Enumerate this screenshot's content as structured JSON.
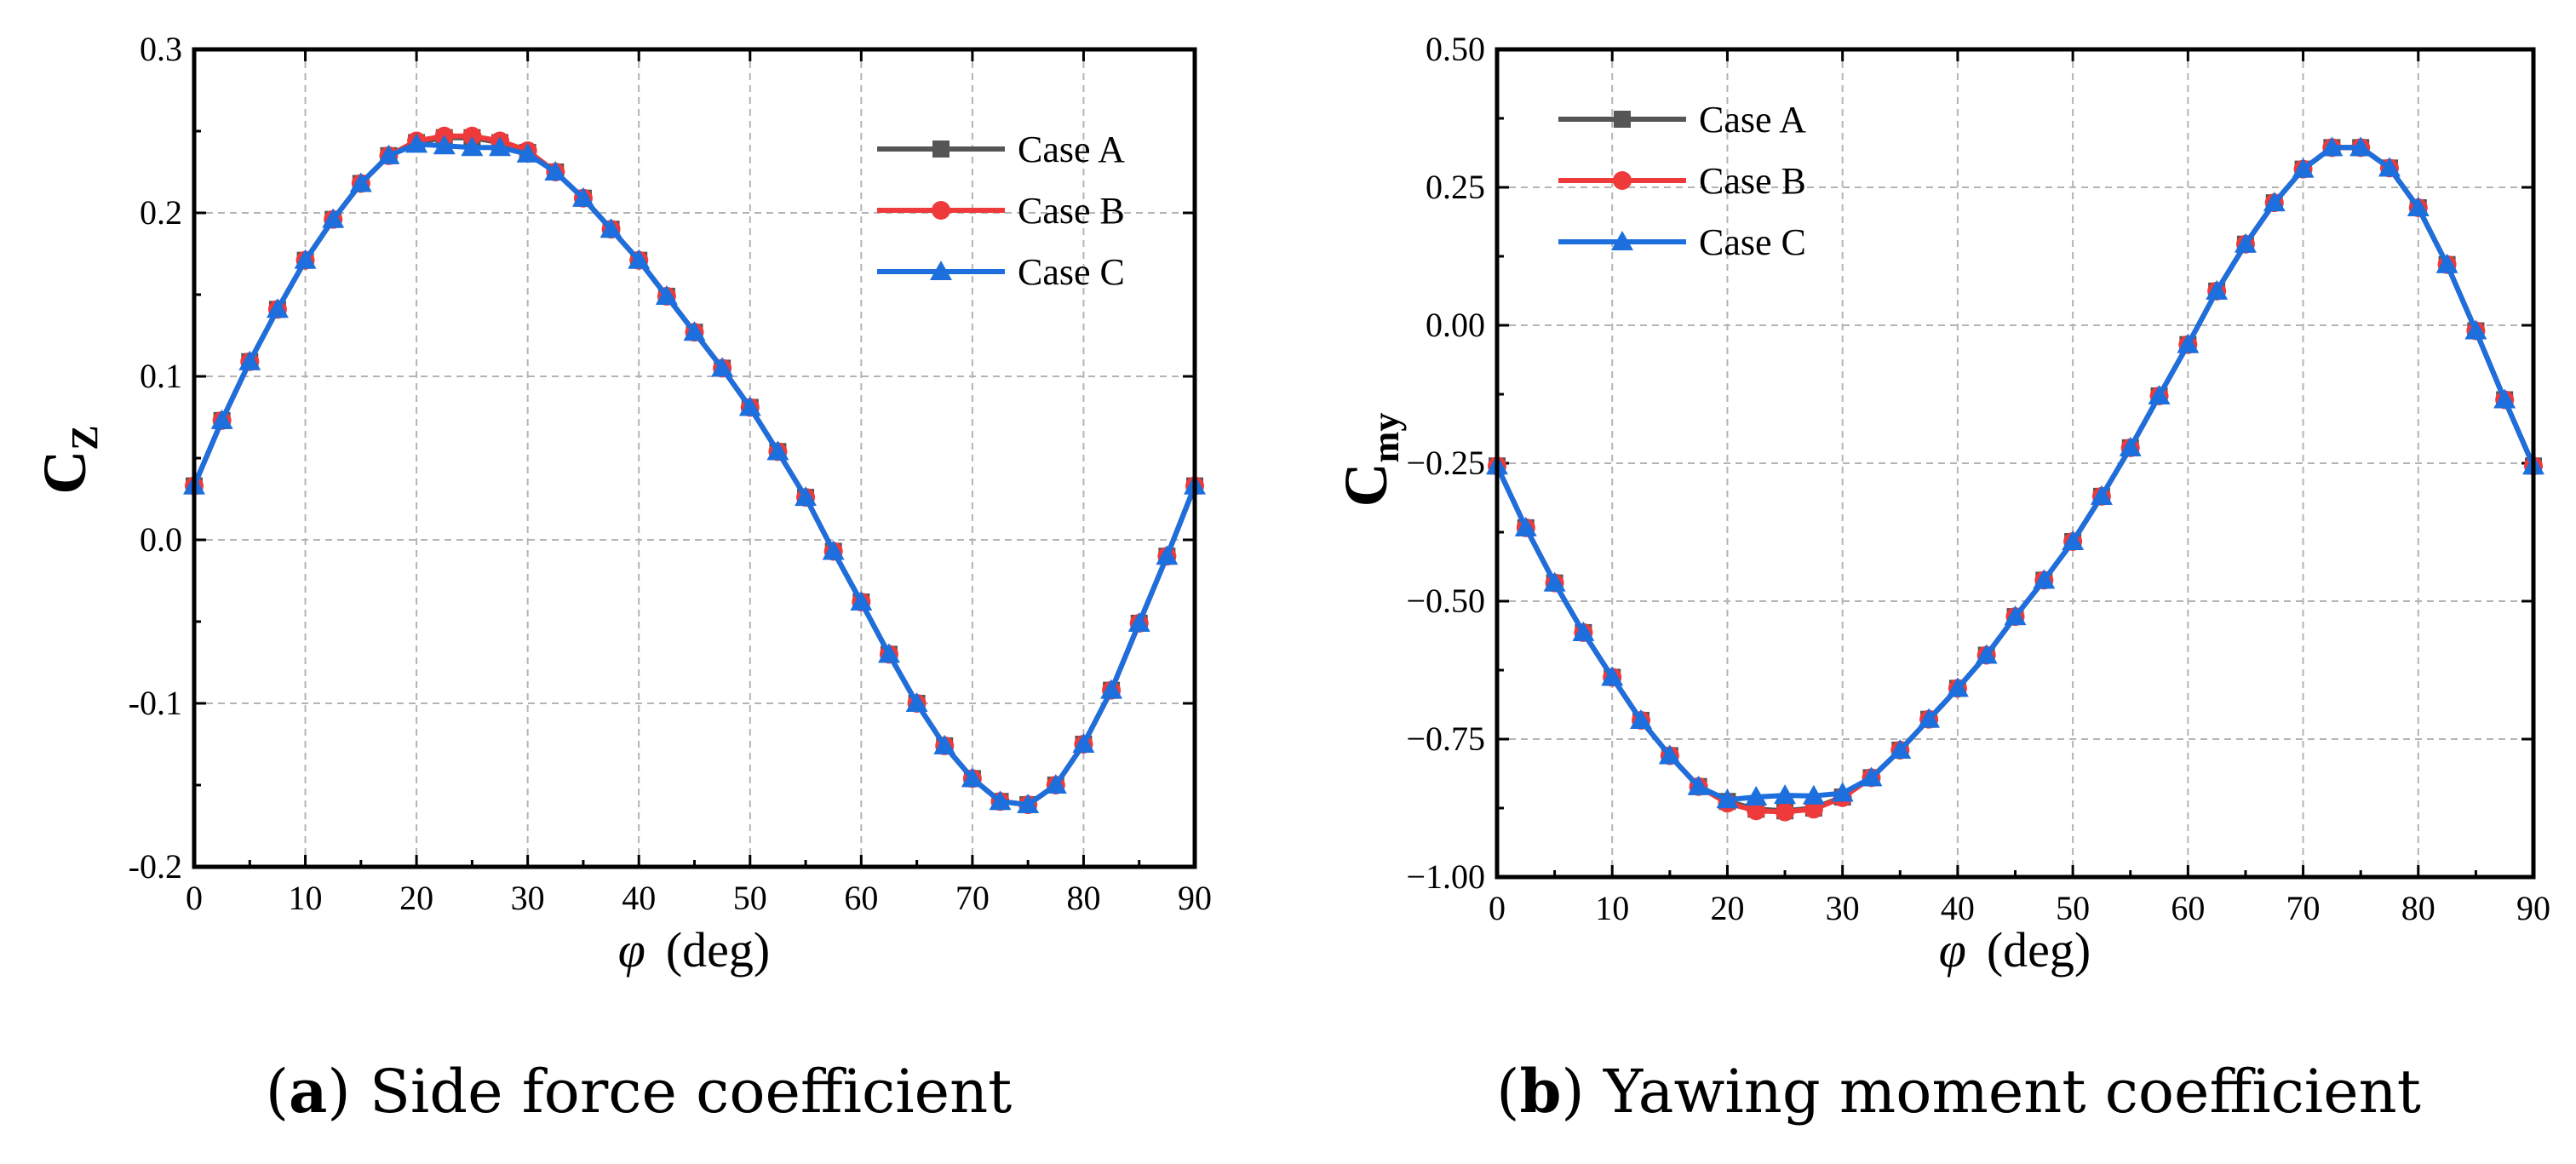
{
  "colors": {
    "case_a": "#555555",
    "case_b": "#ee3a3a",
    "case_c": "#1c6fdc",
    "grid": "#b4b4b4",
    "frame": "#000000"
  },
  "captions": {
    "a": {
      "tag": "a",
      "text": "Side force coefficient"
    },
    "b": {
      "tag": "b",
      "text": "Yawing moment coefficient"
    }
  },
  "chart_data": [
    {
      "type": "line",
      "title": "Side force coefficient",
      "ylabel_main": "C",
      "ylabel_sub": "Z",
      "xlabel_symbol": "φ",
      "xlabel_unit": "(deg)",
      "xlim": [
        0,
        90
      ],
      "ylim": [
        -0.2,
        0.3
      ],
      "grid": true,
      "legend_position": "top-right",
      "xticks": [
        0,
        10,
        20,
        30,
        40,
        50,
        60,
        70,
        80,
        90
      ],
      "xtick_labels": [
        "0",
        "10",
        "20",
        "30",
        "40",
        "50",
        "60",
        "70",
        "80",
        "90"
      ],
      "yticks": [
        -0.2,
        -0.1,
        0.0,
        0.1,
        0.2,
        0.3
      ],
      "ytick_labels": [
        "-0.2",
        "-0.1",
        "0.0",
        "0.1",
        "0.2",
        "0.3"
      ],
      "x": [
        0,
        2.5,
        5,
        7.5,
        10,
        12.5,
        15,
        17.5,
        20,
        22.5,
        25,
        27.5,
        30,
        32.5,
        35,
        37.5,
        40,
        42.5,
        45,
        47.5,
        50,
        52.5,
        55,
        57.5,
        60,
        62.5,
        65,
        67.5,
        70,
        72.5,
        75,
        77.5,
        80,
        82.5,
        85,
        87.5,
        90
      ],
      "series": [
        {
          "name": "Case A",
          "marker": "square",
          "values": [
            0.033,
            0.073,
            0.109,
            0.141,
            0.171,
            0.196,
            0.218,
            0.235,
            0.243,
            0.246,
            0.246,
            0.243,
            0.237,
            0.225,
            0.209,
            0.19,
            0.171,
            0.149,
            0.127,
            0.105,
            0.081,
            0.054,
            0.026,
            -0.007,
            -0.038,
            -0.07,
            -0.1,
            -0.126,
            -0.146,
            -0.16,
            -0.162,
            -0.15,
            -0.125,
            -0.092,
            -0.051,
            -0.01,
            0.033
          ]
        },
        {
          "name": "Case B",
          "marker": "circle",
          "values": [
            0.033,
            0.073,
            0.109,
            0.141,
            0.171,
            0.196,
            0.218,
            0.235,
            0.244,
            0.247,
            0.247,
            0.244,
            0.238,
            0.225,
            0.209,
            0.19,
            0.171,
            0.149,
            0.127,
            0.105,
            0.081,
            0.054,
            0.026,
            -0.007,
            -0.038,
            -0.07,
            -0.1,
            -0.126,
            -0.146,
            -0.16,
            -0.162,
            -0.15,
            -0.125,
            -0.092,
            -0.051,
            -0.01,
            0.033
          ]
        },
        {
          "name": "Case C",
          "marker": "triangle",
          "values": [
            0.033,
            0.073,
            0.109,
            0.141,
            0.171,
            0.196,
            0.218,
            0.235,
            0.242,
            0.241,
            0.24,
            0.24,
            0.236,
            0.225,
            0.209,
            0.19,
            0.171,
            0.149,
            0.127,
            0.105,
            0.081,
            0.054,
            0.026,
            -0.007,
            -0.038,
            -0.07,
            -0.1,
            -0.126,
            -0.146,
            -0.16,
            -0.162,
            -0.15,
            -0.125,
            -0.092,
            -0.051,
            -0.01,
            0.033
          ]
        }
      ]
    },
    {
      "type": "line",
      "title": "Yawing moment coefficient",
      "ylabel_main": "C",
      "ylabel_sub": "my",
      "xlabel_symbol": "φ",
      "xlabel_unit": "(deg)",
      "xlim": [
        0,
        90
      ],
      "ylim": [
        -1.0,
        0.5
      ],
      "grid": true,
      "legend_position": "top-left",
      "xticks": [
        0,
        10,
        20,
        30,
        40,
        50,
        60,
        70,
        80,
        90
      ],
      "xtick_labels": [
        "0",
        "10",
        "20",
        "30",
        "40",
        "50",
        "60",
        "70",
        "80",
        "90"
      ],
      "yticks": [
        -1.0,
        -0.75,
        -0.5,
        -0.25,
        0.0,
        0.25,
        0.5
      ],
      "ytick_labels": [
        "−1.00",
        "−0.75",
        "−0.50",
        "−0.25",
        "0.00",
        "0.25",
        "0.50"
      ],
      "x": [
        0,
        2.5,
        5,
        7.5,
        10,
        12.5,
        15,
        17.5,
        20,
        22.5,
        25,
        27.5,
        30,
        32.5,
        35,
        37.5,
        40,
        42.5,
        45,
        47.5,
        50,
        52.5,
        55,
        57.5,
        60,
        62.5,
        65,
        67.5,
        70,
        72.5,
        75,
        77.5,
        80,
        82.5,
        85,
        87.5,
        90
      ],
      "series": [
        {
          "name": "Case A",
          "marker": "square",
          "values": [
            -0.255,
            -0.367,
            -0.467,
            -0.557,
            -0.638,
            -0.716,
            -0.78,
            -0.836,
            -0.863,
            -0.877,
            -0.88,
            -0.875,
            -0.855,
            -0.82,
            -0.77,
            -0.714,
            -0.658,
            -0.598,
            -0.528,
            -0.462,
            -0.392,
            -0.31,
            -0.222,
            -0.128,
            -0.035,
            0.062,
            0.147,
            0.222,
            0.283,
            0.322,
            0.322,
            0.285,
            0.213,
            0.11,
            -0.01,
            -0.135,
            -0.255
          ]
        },
        {
          "name": "Case B",
          "marker": "circle",
          "values": [
            -0.255,
            -0.367,
            -0.467,
            -0.557,
            -0.638,
            -0.716,
            -0.78,
            -0.836,
            -0.866,
            -0.88,
            -0.882,
            -0.877,
            -0.856,
            -0.82,
            -0.77,
            -0.714,
            -0.658,
            -0.598,
            -0.528,
            -0.462,
            -0.392,
            -0.31,
            -0.222,
            -0.128,
            -0.035,
            0.062,
            0.147,
            0.222,
            0.283,
            0.322,
            0.322,
            0.285,
            0.213,
            0.11,
            -0.01,
            -0.135,
            -0.255
          ]
        },
        {
          "name": "Case C",
          "marker": "triangle",
          "values": [
            -0.255,
            -0.367,
            -0.467,
            -0.557,
            -0.638,
            -0.716,
            -0.78,
            -0.836,
            -0.86,
            -0.855,
            -0.852,
            -0.853,
            -0.848,
            -0.82,
            -0.77,
            -0.714,
            -0.658,
            -0.598,
            -0.528,
            -0.462,
            -0.392,
            -0.31,
            -0.222,
            -0.128,
            -0.035,
            0.062,
            0.147,
            0.222,
            0.283,
            0.322,
            0.322,
            0.285,
            0.213,
            0.11,
            -0.01,
            -0.135,
            -0.255
          ]
        }
      ]
    }
  ]
}
